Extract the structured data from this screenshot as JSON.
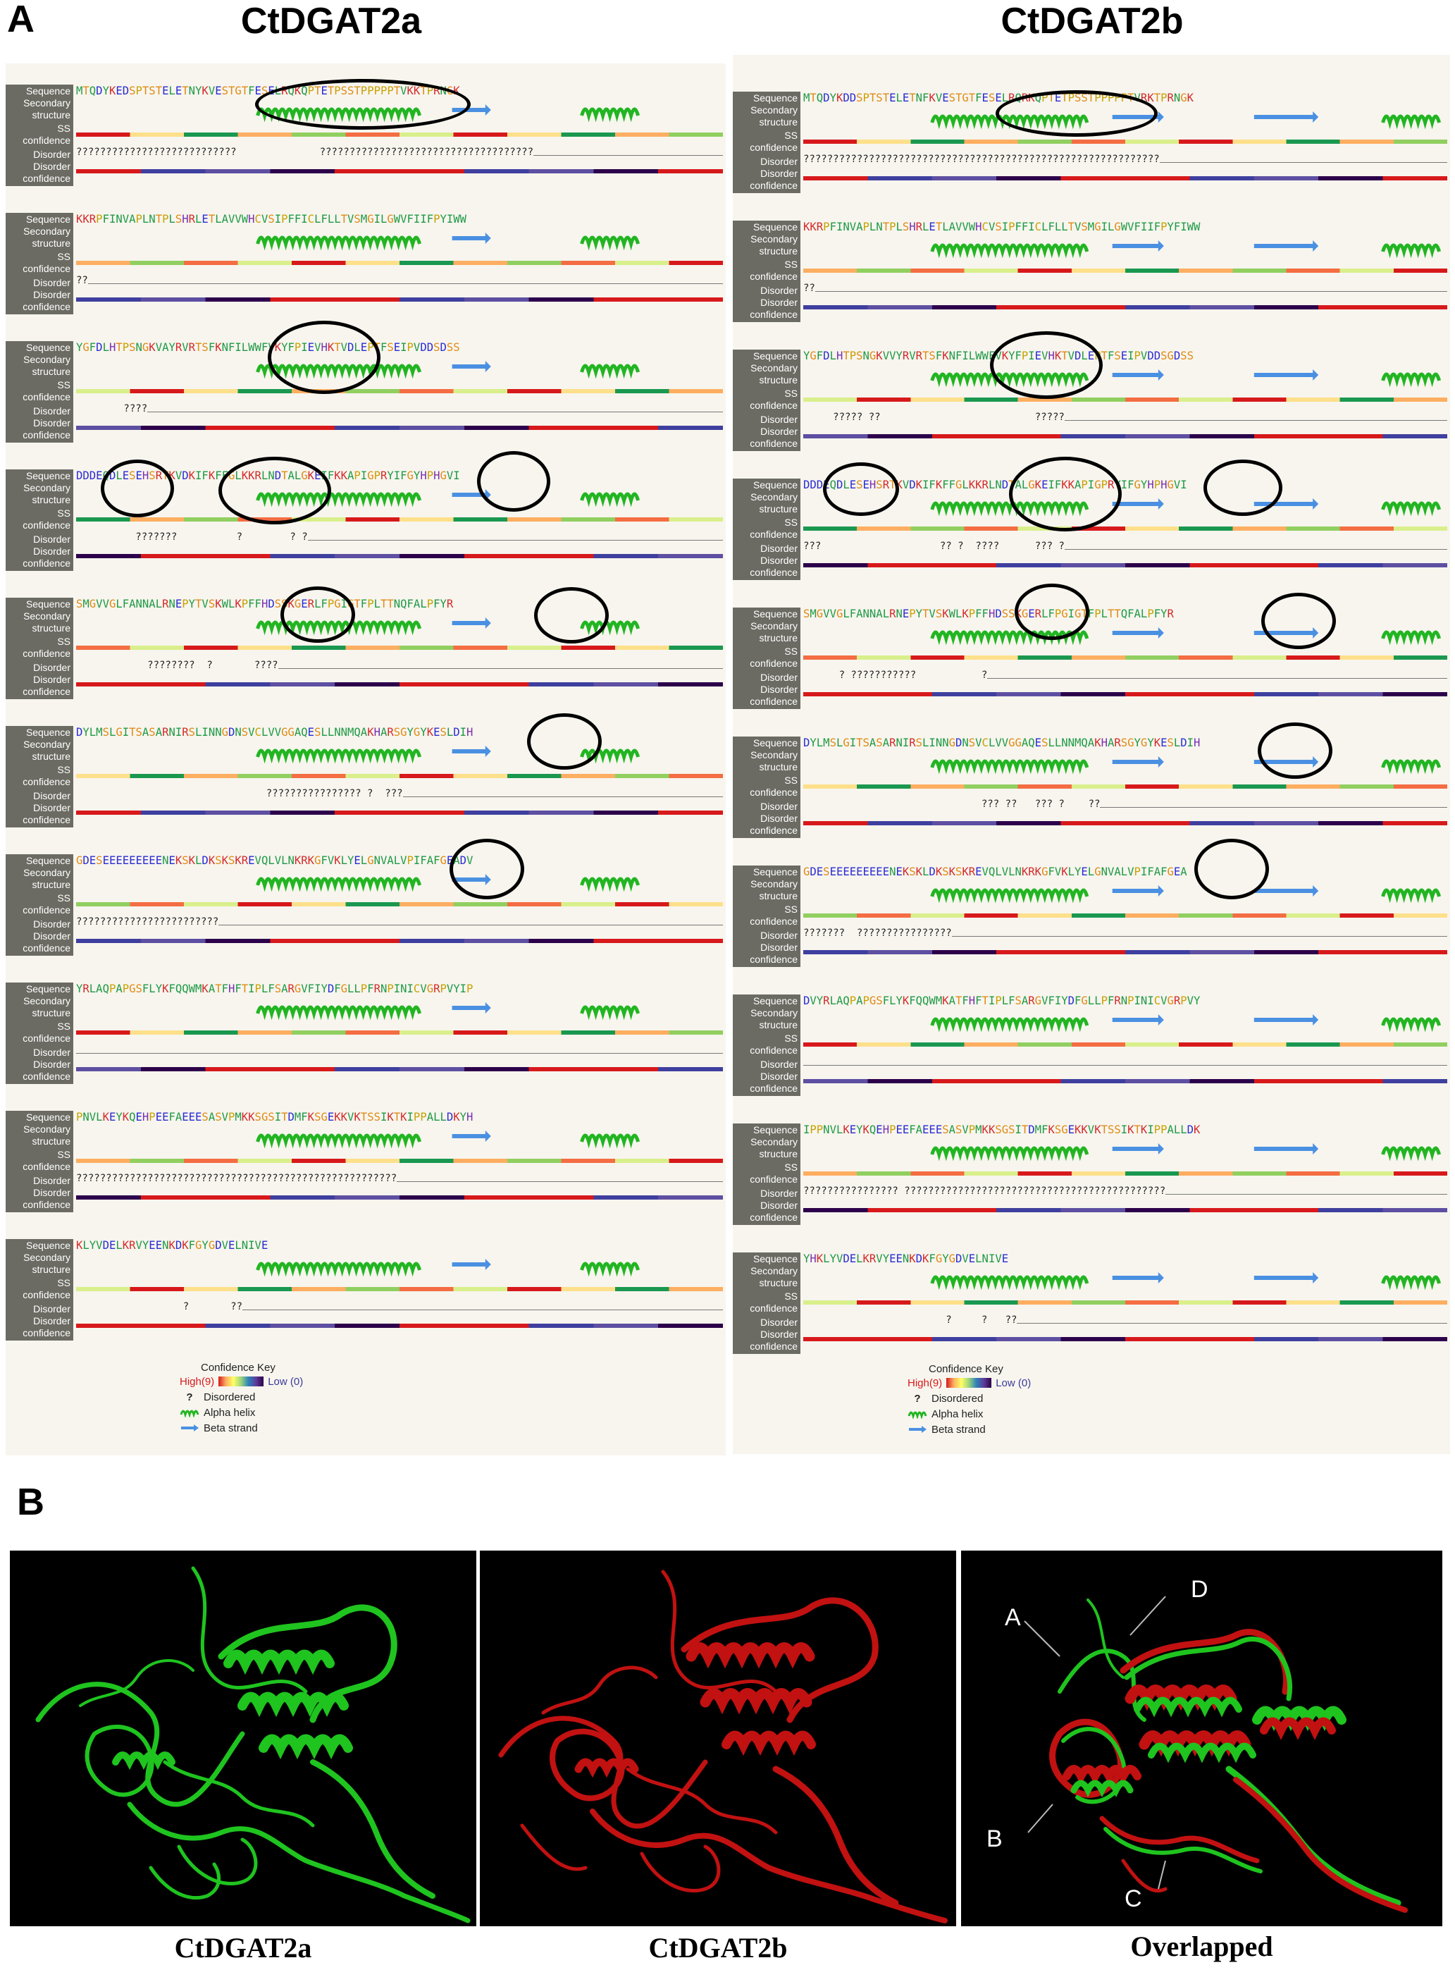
{
  "panel_a": {
    "letter": "A",
    "left_title": "CtDGAT2a",
    "right_title": "CtDGAT2b",
    "row_labels": {
      "sequence": "Sequence",
      "secondary1": "Secondary",
      "secondary2": "structure",
      "ss1": "SS",
      "ss2": "confidence",
      "disorder": "Disorder",
      "disconf1": "Disorder",
      "disconf2": "confidence"
    },
    "left_blocks": [
      {
        "seq": "MTQDYKEDSPTSTELETNYKVESTGTFESELRQKQPTETPSSTPPPPPTVKKTPRNGK",
        "dis": "???????????????????????????              ????????????????????????????????????"
      },
      {
        "seq": "KKRPFINVAPLNTPLSHRLETLAVVWHCVSIPFFICLFLLTVSMGILGWVFIIFPYIWW",
        "dis": "??"
      },
      {
        "seq": "YGFDLHTPSNGKVAYRVRTSFKNFILWWFVKYFPIEVHKTVDLEPTFSEIPVDDSDSS",
        "dis": "        ????"
      },
      {
        "seq": "DDDEQDLESEHSRTKVDKIFKFFGLKKRLNDTALGKEIFKKAPIGPRYIFGYHPHGVI",
        "dis": "          ???????          ?        ? ?"
      },
      {
        "seq": "SMGVVGLFANNALRNEPYTVSKWLKPFFHDSSKGERLFPGIGTFPLTTNQFALPFYR",
        "dis": "            ????????  ?       ????"
      },
      {
        "seq": "DYLMSLGITSASARNIRSLINNGDNSVCLVVGGAQESLLNNMQAKHARSGYGYKESLDIH",
        "dis": "                                ???????????????? ?  ???"
      },
      {
        "seq": "GDESEEEEEEEEENEKSKLDKSKSKREVQLVLNKRKGFVKLYELGNVALVPIFAFGEADV",
        "dis": "????????????????????????"
      },
      {
        "seq": "YRLAQPAPGSFLYKFQQWMKATFHFTIPLFSARGVFIYDFGLLPFRNPINICVGRPVYIP",
        "dis": ""
      },
      {
        "seq": "PNVLKEYKQEHPEEFAEEESASVPMKKSGSITDMFKSGEKKVKTSSIKTKIPPALLDKYH",
        "dis": "??????????????????????????????????????????????????????"
      },
      {
        "seq": "KLYVDELKRVYEENKDKFGYGDVELNIVE",
        "dis": "                  ?       ??"
      }
    ],
    "right_blocks": [
      {
        "seq": "MTQDYKDDSPTSTELETNFKVESTGTFESELRQRKQPTETPSSTPPPPPTVRKTPRNGK",
        "dis": "????????????????????????????????????????????????????????????"
      },
      {
        "seq": "KKRPFINVAPLNTPLSHRLETLAVVWHCVSIPFFICLFLLTVSMGILGWVFIIFPYFIWW",
        "dis": "??"
      },
      {
        "seq": "YGFDLHTPSNGKVVYRVRTSFKNFILWWFVKYFPIEVHKTVDLEPTFSEIPVDDSGDSS",
        "dis": "     ????? ??                          ?????"
      },
      {
        "seq": "DDDEQDLESEHSRTKVDKIFKFFGLKKRLNDTALGKEIFKKAPIGPRYIFGYHPHGVI",
        "dis": "???                    ?? ?  ????      ??? ?"
      },
      {
        "seq": "SMGVVGLFANNALRNEPYTVSKWLKPFFHDSSKGERLFPGIGTFPLTTQFALPFYR",
        "dis": "      ? ???????????           ?"
      },
      {
        "seq": "DYLMSLGITSASARNIRSLINNGDNSVCLVVGGAQESLLNNMQAKHARSGYGYKESLDIH",
        "dis": "                              ??? ??   ??? ?    ??"
      },
      {
        "seq": "GDESEEEEEEEEENEKSKLDKSKSKREVQLVLNKRKGFVKLYELGNVALVPIFAFGEA",
        "dis": "???????  ????????????????"
      },
      {
        "seq": "DVYRLAQPAPGSFLYKFQQWMKATFHFTIPLFSARGVFIYDFGLLPFRNPINICVGRPVY",
        "dis": ""
      },
      {
        "seq": "IPPNVLKEYKQEHPEEFAEEESASVPMKKSGSITDMFKSGEKKVKTSSIKTKIPPALLDK",
        "dis": "???????????????? ????????????????????????????????????????????"
      },
      {
        "seq": "YHKLYVDELKRVYEENKDKFGYGDVELNIVE",
        "dis": "                        ?     ?   ??"
      }
    ],
    "key": {
      "title": "Confidence Key",
      "high": "High(9)",
      "low": "Low (0)",
      "disordered_symbol": "?",
      "disordered": "Disordered",
      "alpha": "Alpha helix",
      "beta": "Beta strand"
    }
  },
  "panel_b": {
    "letter": "B",
    "captions": [
      "CtDGAT2a",
      "CtDGAT2b",
      "Overlapped"
    ],
    "overlay_labels": {
      "a": "A",
      "b": "B",
      "c": "C",
      "d": "D"
    },
    "colors": {
      "green": "#1fc41f",
      "red": "#c21111"
    }
  }
}
